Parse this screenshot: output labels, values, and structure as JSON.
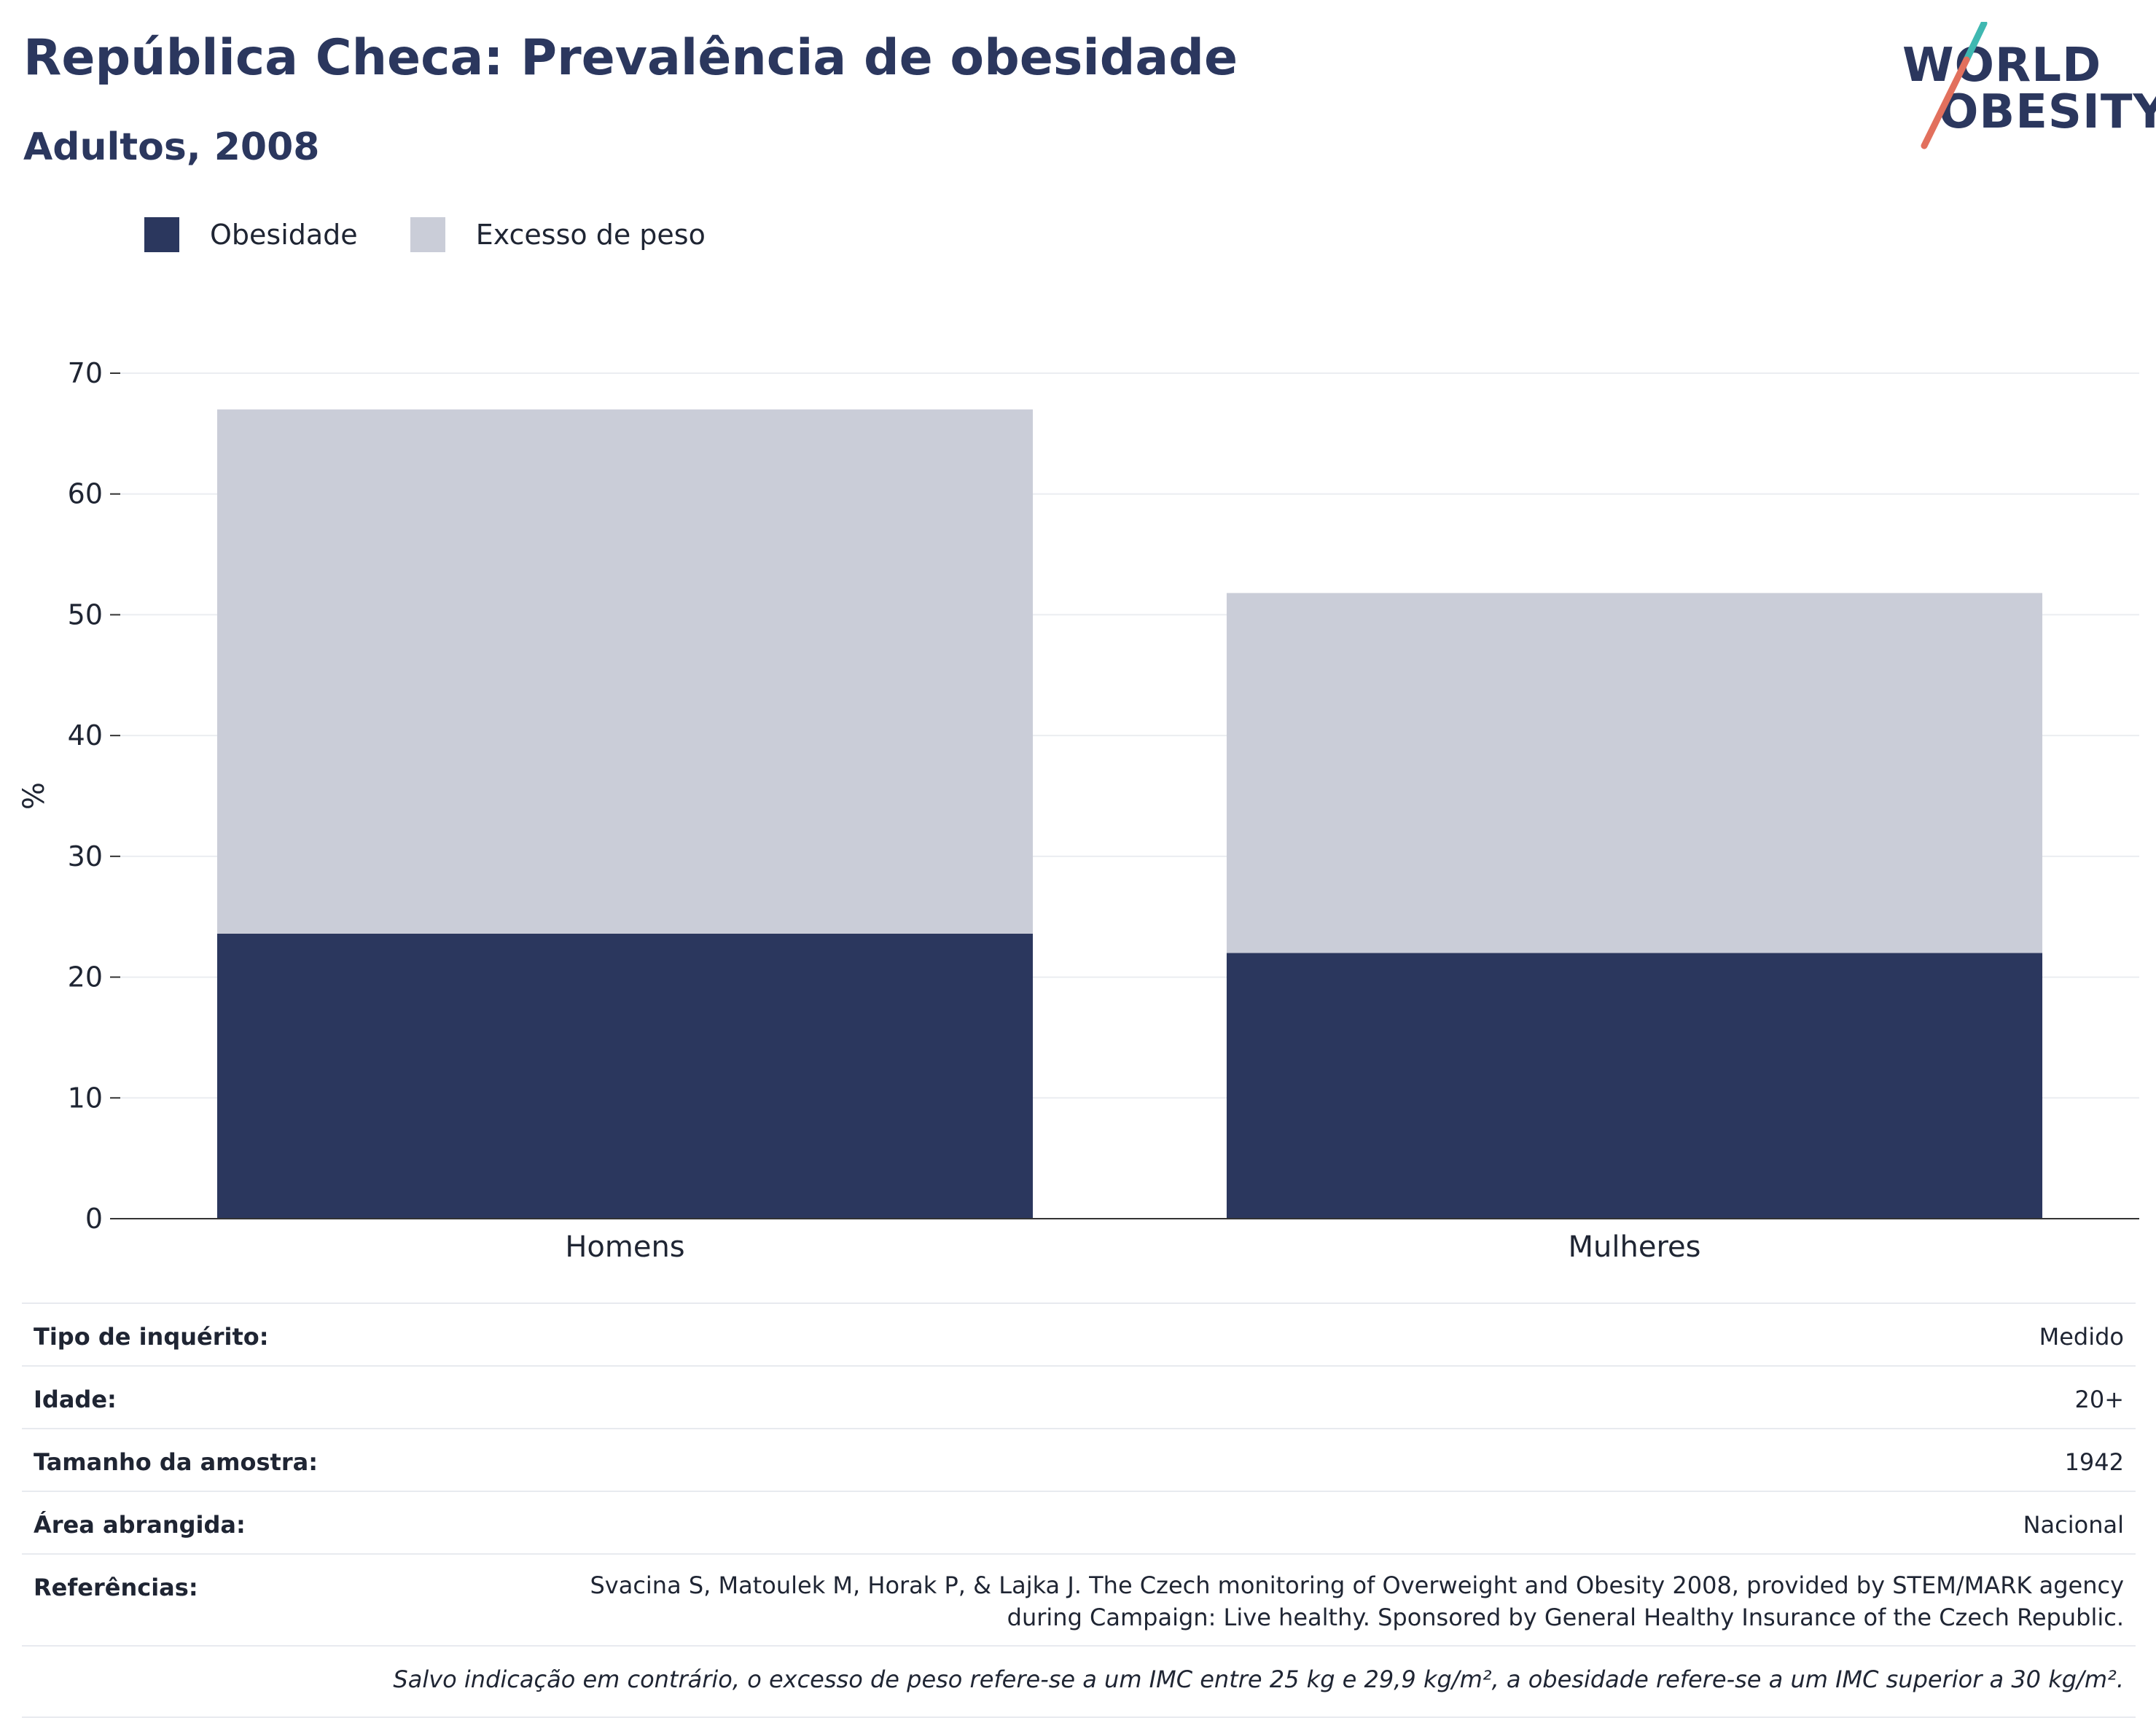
{
  "header": {
    "title": "República Checa: Prevalência de obesidade",
    "subtitle": "Adultos, 2008"
  },
  "logo": {
    "line1": "WORLD",
    "line2": "OBESITY",
    "colors": {
      "text": "#2b375e",
      "slash_top": "#3fb8b1",
      "slash_bottom": "#e2705d"
    }
  },
  "legend": {
    "items": [
      {
        "label": "Obesidade",
        "color": "#2b375e"
      },
      {
        "label": "Excesso de peso",
        "color": "#cacdd8"
      }
    ]
  },
  "chart_data": {
    "type": "bar",
    "stacked": true,
    "categories": [
      "Homens",
      "Mulheres"
    ],
    "series": [
      {
        "name": "Obesidade",
        "values": [
          23.6,
          22.0
        ],
        "color": "#2b375e"
      },
      {
        "name": "Excesso de peso",
        "values": [
          43.4,
          29.8
        ],
        "color": "#cacdd8"
      }
    ],
    "ylabel": "%",
    "ylim": [
      0,
      70
    ],
    "yticks": [
      0,
      10,
      20,
      30,
      40,
      50,
      60,
      70
    ],
    "grid": true,
    "legend_position": "top-left"
  },
  "info": {
    "rows": [
      {
        "label": "Tipo de inquérito:",
        "value": "Medido"
      },
      {
        "label": "Idade:",
        "value": "20+"
      },
      {
        "label": "Tamanho da amostra:",
        "value": "1942"
      },
      {
        "label": "Área abrangida:",
        "value": "Nacional"
      }
    ],
    "references": {
      "label": "Referências:",
      "line1": "Svacina S, Matoulek M, Horak P, & Lajka J. The Czech monitoring of Overweight and Obesity 2008, provided by STEM/MARK agency",
      "line2": "during Campaign: Live healthy. Sponsored by General Healthy Insurance of the Czech Republic."
    },
    "note": "Salvo indicação em contrário, o excesso de peso refere-se a um IMC entre 25 kg e 29,9 kg/m², a obesidade refere-se a um IMC superior a 30 kg/m²."
  }
}
